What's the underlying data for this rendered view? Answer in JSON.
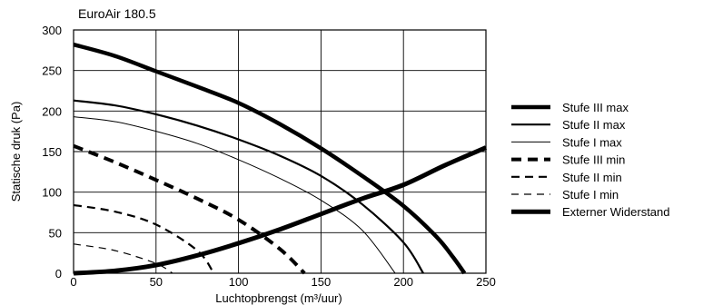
{
  "chart_data": {
    "type": "line",
    "title": "EuroAir 180.5",
    "xlabel": "Luchtopbrengst (m³/uur)",
    "ylabel": "Statische druk (Pa)",
    "xlim": [
      0,
      250
    ],
    "ylim": [
      0,
      300
    ],
    "xticks": [
      0,
      50,
      100,
      150,
      200,
      250
    ],
    "yticks": [
      0,
      50,
      100,
      150,
      200,
      250,
      300
    ],
    "grid": true,
    "legend_position": "right",
    "series": [
      {
        "name": "Stufe III max",
        "style": "solid-thick",
        "x": [
          0,
          25,
          50,
          75,
          100,
          125,
          150,
          175,
          200,
          220,
          230,
          237
        ],
        "y": [
          282,
          268,
          249,
          230,
          210,
          184,
          154,
          120,
          83,
          45,
          20,
          0
        ]
      },
      {
        "name": "Stufe II max",
        "style": "solid-medium",
        "x": [
          0,
          25,
          50,
          75,
          100,
          125,
          150,
          175,
          200,
          212
        ],
        "y": [
          213,
          207,
          196,
          182,
          165,
          145,
          120,
          85,
          38,
          0
        ]
      },
      {
        "name": "Stufe I max",
        "style": "solid-thin",
        "x": [
          0,
          25,
          50,
          75,
          100,
          125,
          150,
          175,
          195
        ],
        "y": [
          193,
          187,
          175,
          160,
          140,
          117,
          90,
          53,
          0
        ]
      },
      {
        "name": "Stufe III min",
        "style": "dashed-thick",
        "x": [
          0,
          25,
          50,
          75,
          100,
          125,
          140
        ],
        "y": [
          157,
          137,
          115,
          92,
          66,
          30,
          0
        ]
      },
      {
        "name": "Stufe II min",
        "style": "dashed-medium",
        "x": [
          0,
          25,
          50,
          75,
          85
        ],
        "y": [
          84,
          76,
          60,
          28,
          0
        ]
      },
      {
        "name": "Stufe I min",
        "style": "dashed-thin",
        "x": [
          0,
          25,
          50,
          60
        ],
        "y": [
          36,
          28,
          12,
          0
        ]
      },
      {
        "name": "Externer Widerstand",
        "style": "solid-extra-thick",
        "x": [
          0,
          25,
          50,
          75,
          100,
          125,
          150,
          175,
          200,
          225,
          250
        ],
        "y": [
          0,
          3,
          10,
          22,
          37,
          54,
          73,
          92,
          109,
          133,
          155
        ]
      }
    ]
  }
}
